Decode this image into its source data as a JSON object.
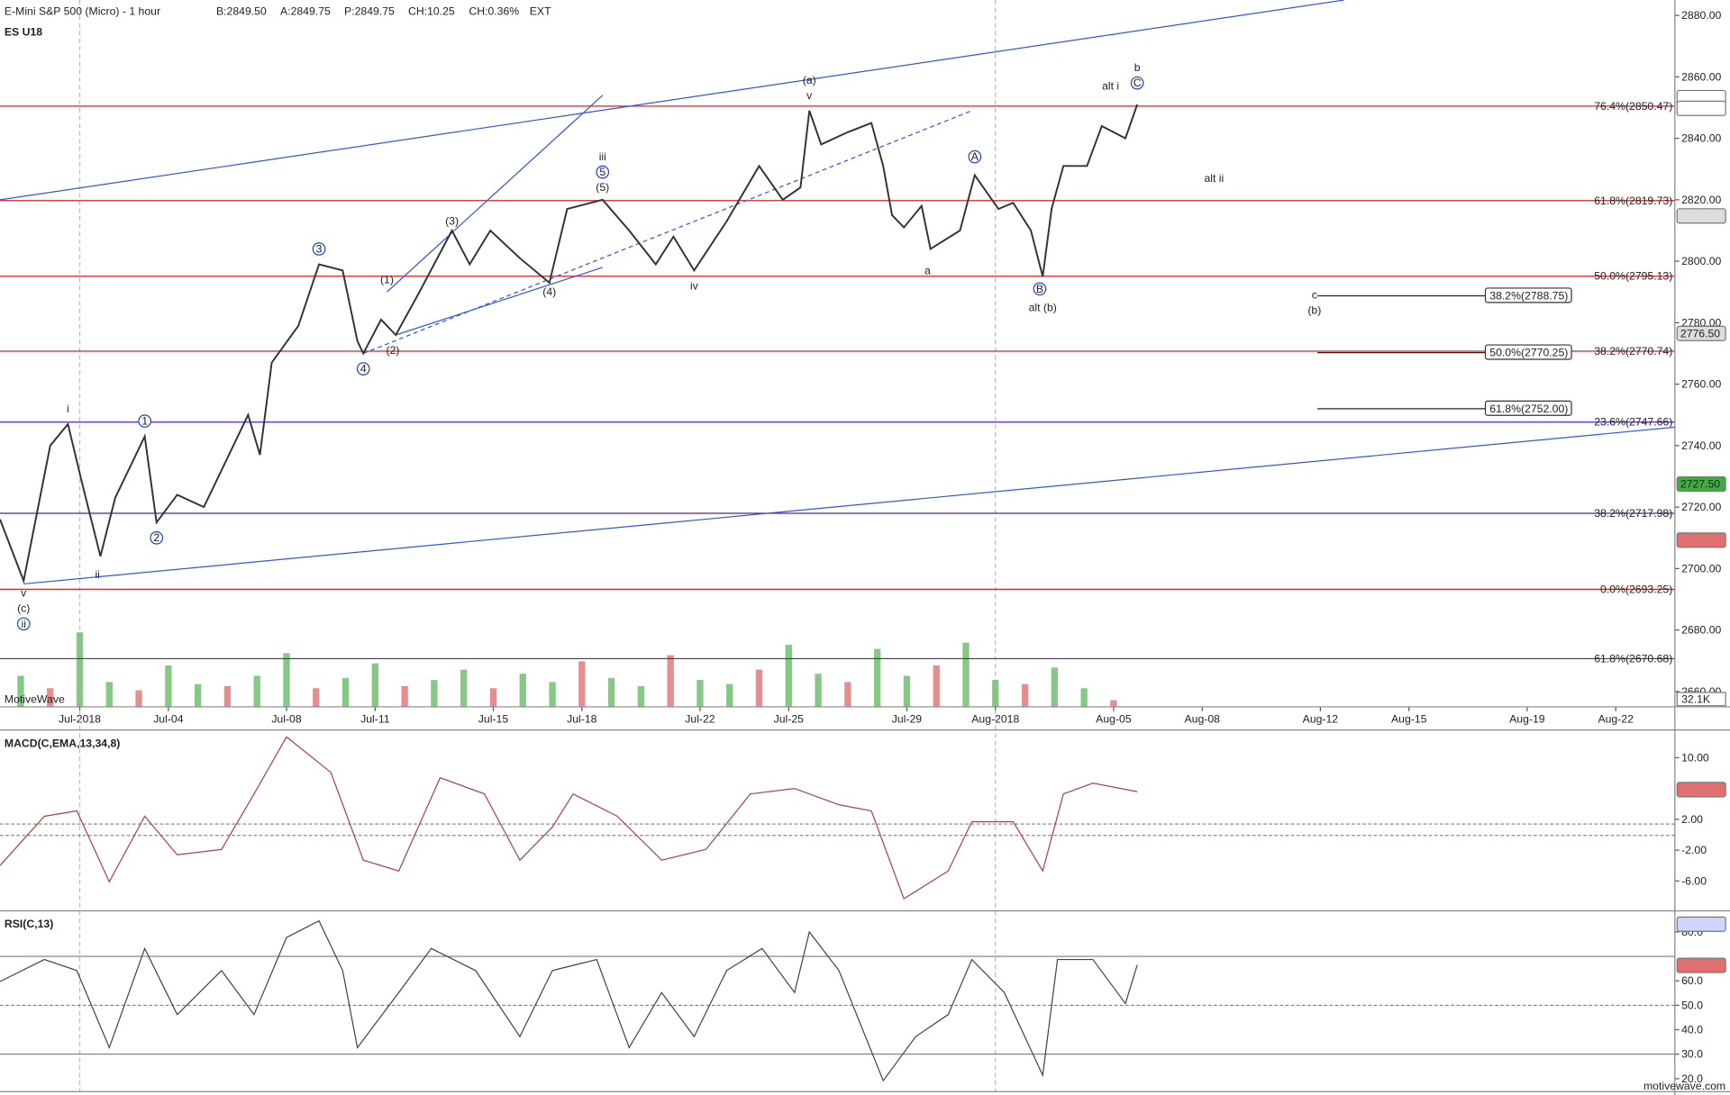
{
  "header": {
    "title": "E-Mini S&P 500 (Micro) - 1 hour",
    "bid": "B:2849.50",
    "ask": "A:2849.75",
    "price": "P:2849.75",
    "change": "CH:10.25",
    "change_pct": "CH:0.36%",
    "ext": "EXT",
    "symbol": "ES U18",
    "watermark": "MotiveWave",
    "site": "motivewave.com"
  },
  "chart_data": [
    {
      "type": "line",
      "color": "#333333",
      "xlim": [
        -1.7,
        55
      ],
      "xticks": [
        {
          "value": 1,
          "label": "Jul-2018"
        },
        {
          "value": 4,
          "label": "Jul-04"
        },
        {
          "value": 8,
          "label": "Jul-08"
        },
        {
          "value": 11,
          "label": "Jul-11"
        },
        {
          "value": 15,
          "label": "Jul-15"
        },
        {
          "value": 18,
          "label": "Jul-18"
        },
        {
          "value": 22,
          "label": "Jul-22"
        },
        {
          "value": 25,
          "label": "Jul-25"
        },
        {
          "value": 29,
          "label": "Jul-29"
        },
        {
          "value": 32,
          "label": "Aug-2018"
        },
        {
          "value": 36,
          "label": "Aug-05"
        },
        {
          "value": 39,
          "label": "Aug-08"
        },
        {
          "value": 43,
          "label": "Aug-12"
        },
        {
          "value": 46,
          "label": "Aug-15"
        },
        {
          "value": 50,
          "label": "Aug-19"
        },
        {
          "value": 53,
          "label": "Aug-22"
        }
      ],
      "month_lines": [
        0,
        9
      ],
      "ylim": [
        2655,
        2885
      ],
      "yticks": [
        {
          "value": 2660,
          "label": "2660.00"
        },
        {
          "value": 2680,
          "label": "2680.00"
        },
        {
          "value": 2700,
          "label": "2700.00"
        },
        {
          "value": 2720,
          "label": "2720.00"
        },
        {
          "value": 2740,
          "label": "2740.00"
        },
        {
          "value": 2760,
          "label": "2760.00"
        },
        {
          "value": 2780,
          "label": "2780.00"
        },
        {
          "value": 2800,
          "label": "2800.00"
        },
        {
          "value": 2820,
          "label": "2820.00"
        },
        {
          "value": 2840,
          "label": "2840.00"
        },
        {
          "value": 2860,
          "label": "2860.00"
        },
        {
          "value": 2880,
          "label": "2880.00"
        }
      ],
      "x": [
        -1.7,
        -0.9,
        0.0,
        0.6,
        1.1,
        1.7,
        2.2,
        3.2,
        3.6,
        4.3,
        5.2,
        6.0,
        6.7,
        7.1,
        7.5,
        8.4,
        9.1,
        9.9,
        10.4,
        10.6,
        11.2,
        11.7,
        12.5,
        13.6,
        14.2,
        14.9,
        15.9,
        16.9,
        17.5,
        18.7,
        19.6,
        20.5,
        21.1,
        21.8,
        22.9,
        24.0,
        24.8,
        25.4,
        25.7,
        26.1,
        27.0,
        27.8,
        28.2,
        28.5,
        28.9,
        29.5,
        29.8,
        30.8,
        31.3,
        32.1,
        32.6,
        33.2,
        33.6,
        33.9,
        34.3,
        35.1,
        35.6,
        36.4,
        36.8
      ],
      "values": [
        2716,
        2696,
        2740,
        2747,
        2727,
        2704,
        2723,
        2743,
        2715,
        2724,
        2720,
        2736,
        2750,
        2737,
        2767,
        2779,
        2799,
        2797,
        2774,
        2770,
        2781,
        2776,
        2790,
        2810,
        2799,
        2810,
        2801,
        2793,
        2817,
        2820,
        2810,
        2799,
        2808,
        2797,
        2813,
        2831,
        2820,
        2824,
        2849,
        2838,
        2842,
        2845,
        2831,
        2815,
        2811,
        2818,
        2804,
        2810,
        2828,
        2817,
        2819,
        2810,
        2795,
        2817,
        2831,
        2831,
        2844,
        2840,
        2851
      ],
      "volume": {
        "vlim": [
          0,
          400
        ],
        "up": "#66bb66",
        "down": "#e07070",
        "x": [
          -1,
          0,
          1,
          2,
          3,
          4,
          5,
          6,
          7,
          8,
          9,
          10,
          11,
          12,
          13,
          14,
          15,
          16,
          17,
          18,
          19,
          20,
          21,
          22,
          23,
          24,
          25,
          26,
          27,
          28,
          29,
          30,
          31,
          32,
          33,
          34,
          35,
          36
        ],
        "values": [
          150,
          90,
          360,
          120,
          80,
          200,
          110,
          100,
          150,
          260,
          90,
          140,
          210,
          100,
          130,
          180,
          90,
          160,
          120,
          220,
          140,
          100,
          250,
          130,
          110,
          180,
          300,
          160,
          120,
          280,
          150,
          200,
          310,
          130,
          110,
          190,
          90,
          32.1
        ],
        "label": {
          "value": 32.1,
          "label": "32.1K"
        }
      },
      "levels": [
        {
          "value": 2850.47,
          "label": "76.4%(2850.47)",
          "color": "#dd2222",
          "x0": -1.7
        },
        {
          "value": 2819.73,
          "label": "61.8%(2819.73)",
          "color": "#dd2222",
          "x0": -1.7
        },
        {
          "value": 2795.13,
          "label": "50.0%(2795.13)",
          "color": "#dd2222",
          "x0": -1.7
        },
        {
          "value": 2770.74,
          "label": "38.2%(2770.74)",
          "color": "#dd2222",
          "x0": -1.7
        },
        {
          "value": 2693.25,
          "label": "0.0%(2693.25)",
          "color": "#dd2222",
          "x0": -1.7
        },
        {
          "value": 2747.66,
          "label": "23.6%(2747.66)",
          "color": "#5522aa",
          "x0": -1.7
        },
        {
          "value": 2717.98,
          "label": "38.2%(2717.98)",
          "color": "#5522aa",
          "x0": -1.7
        },
        {
          "value": 2670.68,
          "label": "61.8%(2670.68)",
          "color": "#5522aa",
          "x0": -1.7
        },
        {
          "value": 2788.75,
          "label": "38.2%(2788.75)",
          "color": "#222222",
          "x0": 42.9,
          "x1": 51.5,
          "boxed": true
        },
        {
          "value": 2770.25,
          "label": "50.0%(2770.25)",
          "color": "#222222",
          "x0": 42.9,
          "x1": 51.5,
          "boxed": true
        },
        {
          "value": 2752.0,
          "label": "61.8%(2752.00)",
          "color": "#222222",
          "x0": 42.9,
          "x1": 51.5,
          "boxed": true
        }
      ],
      "trendlines": [
        {
          "points": [
            -1.7,
            2820,
            43.8,
            2885
          ],
          "color": "#3355dd",
          "dashed": false
        },
        {
          "points": [
            -0.9,
            2695,
            55,
            2746
          ],
          "color": "#3355dd",
          "dashed": false
        },
        {
          "points": [
            11.4,
            2790,
            18.7,
            2854
          ],
          "color": "#3355dd",
          "dashed": false
        },
        {
          "points": [
            11.7,
            2776,
            18.7,
            2798
          ],
          "color": "#3355dd",
          "dashed": false
        },
        {
          "points": [
            10.6,
            2770,
            31.2,
            2849
          ],
          "color": "#3355dd",
          "dashed": true
        }
      ],
      "annotations": [
        {
          "text": "v",
          "x": -0.9,
          "y": 2692,
          "color": "#2244cc"
        },
        {
          "text": "(c)",
          "x": -0.9,
          "y": 2687,
          "color": "#2244cc"
        },
        {
          "text": "ii",
          "x": -0.9,
          "y": 2682,
          "color": "#2244cc",
          "circle": true
        },
        {
          "text": "i",
          "x": 0.6,
          "y": 2752,
          "color": "#2244cc"
        },
        {
          "text": "ii",
          "x": 1.6,
          "y": 2698,
          "color": "#2244cc"
        },
        {
          "text": "1",
          "x": 3.2,
          "y": 2748,
          "color": "#2244cc",
          "circle": true
        },
        {
          "text": "2",
          "x": 3.6,
          "y": 2710,
          "color": "#2244cc",
          "circle": true
        },
        {
          "text": "3",
          "x": 9.1,
          "y": 2804,
          "color": "#2244cc",
          "circle": true
        },
        {
          "text": "4",
          "x": 10.6,
          "y": 2765,
          "color": "#2244cc",
          "circle": true
        },
        {
          "text": "(1)",
          "x": 11.4,
          "y": 2794,
          "color": "#2244cc"
        },
        {
          "text": "(2)",
          "x": 11.6,
          "y": 2771,
          "color": "#2244cc"
        },
        {
          "text": "(3)",
          "x": 13.6,
          "y": 2813,
          "color": "#2244cc"
        },
        {
          "text": "(4)",
          "x": 16.9,
          "y": 2790,
          "color": "#2244cc"
        },
        {
          "text": "iii",
          "x": 18.7,
          "y": 2834,
          "color": "#2244cc"
        },
        {
          "text": "5",
          "x": 18.7,
          "y": 2829,
          "color": "#2244cc",
          "circle": true
        },
        {
          "text": "(5)",
          "x": 18.7,
          "y": 2824,
          "color": "#2244cc"
        },
        {
          "text": "iv",
          "x": 21.8,
          "y": 2792,
          "color": "#2244cc"
        },
        {
          "text": "(a)",
          "x": 25.7,
          "y": 2859,
          "color": "#2244cc"
        },
        {
          "text": "v",
          "x": 25.7,
          "y": 2854,
          "color": "#2244cc"
        },
        {
          "text": "A",
          "x": 31.3,
          "y": 2834,
          "color": "#2244cc",
          "circle": true
        },
        {
          "text": "a",
          "x": 29.7,
          "y": 2797,
          "color": "#2244cc"
        },
        {
          "text": "B",
          "x": 33.5,
          "y": 2791,
          "color": "#2244cc",
          "circle": true
        },
        {
          "text": "alt (b)",
          "x": 33.6,
          "y": 2785,
          "color": "#dd2222"
        },
        {
          "text": "alt i",
          "x": 35.9,
          "y": 2857,
          "color": "#dd2222"
        },
        {
          "text": "b",
          "x": 36.8,
          "y": 2863,
          "color": "#2244cc"
        },
        {
          "text": "C",
          "x": 36.8,
          "y": 2858,
          "color": "#2244cc",
          "circle": true
        },
        {
          "text": "alt ii",
          "x": 39.4,
          "y": 2827,
          "color": "#dd2222"
        },
        {
          "text": "c",
          "x": 42.8,
          "y": 2789,
          "color": "#2244cc"
        },
        {
          "text": "(b)",
          "x": 42.8,
          "y": 2784,
          "color": "#2244cc"
        }
      ],
      "markers": [
        {
          "value": 2853.25,
          "color": "#ffffff"
        },
        {
          "value": 2849.75,
          "color": "#ffffff"
        },
        {
          "value": 2814.75,
          "color": "#dddddd"
        },
        {
          "value": 2776.5,
          "label": "2776.50",
          "color": "#dddddd"
        },
        {
          "value": 2727.5,
          "label": "2727.50",
          "color": "#44aa44"
        },
        {
          "value": 2709.25,
          "color": "#e07070"
        }
      ]
    },
    {
      "type": "line",
      "title": "MACD(C,EMA,13,34,8)",
      "color": "#aa4444",
      "ylim": [
        -9.3,
        13.6
      ],
      "yticks": [
        {
          "value": 10,
          "label": "10.00"
        },
        {
          "value": 2,
          "label": "2.00"
        },
        {
          "value": -2,
          "label": "-2.00"
        },
        {
          "value": -6,
          "label": "-6.00"
        }
      ],
      "ref_lines": [
        1.4,
        -0.1
      ],
      "x": [
        -1.7,
        -0.2,
        0.9,
        2.0,
        3.2,
        4.3,
        5.8,
        6.9,
        8.0,
        9.5,
        10.6,
        11.8,
        13.2,
        14.7,
        15.9,
        17.0,
        17.7,
        19.2,
        20.7,
        22.2,
        23.7,
        25.2,
        26.7,
        27.8,
        28.9,
        30.4,
        31.2,
        32.6,
        33.6,
        34.3,
        35.3,
        36.8
      ],
      "values": [
        -4.0,
        2.4,
        3.1,
        -6.1,
        2.4,
        -2.6,
        -1.9,
        5.3,
        12.7,
        8.1,
        -3.3,
        -4.7,
        7.4,
        5.3,
        -3.3,
        1.0,
        5.3,
        2.4,
        -3.3,
        -1.9,
        5.3,
        6.0,
        3.9,
        3.1,
        -8.3,
        -4.7,
        1.7,
        1.7,
        -4.7,
        5.3,
        6.7,
        5.6
      ],
      "markers": [
        {
          "value": 5.86,
          "color": "#e07070"
        }
      ]
    },
    {
      "type": "line",
      "title": "RSI(C,13)",
      "color": "#444444",
      "ylim": [
        14.7,
        86.8
      ],
      "yticks": [
        {
          "value": 80,
          "label": "80.0"
        },
        {
          "value": 60,
          "label": "60.0"
        },
        {
          "value": 50,
          "label": "50.0"
        },
        {
          "value": 40,
          "label": "40.0"
        },
        {
          "value": 30,
          "label": "30.0"
        },
        {
          "value": 20,
          "label": "20.0"
        }
      ],
      "ref_lines": [
        70,
        50,
        30
      ],
      "x": [
        -1.7,
        -0.2,
        0.9,
        2.0,
        3.2,
        4.3,
        5.8,
        6.9,
        8.0,
        9.1,
        9.9,
        10.4,
        11.8,
        12.9,
        14.4,
        15.9,
        17.0,
        18.5,
        19.6,
        20.7,
        21.8,
        22.9,
        24.1,
        25.2,
        25.7,
        26.7,
        28.2,
        29.3,
        30.4,
        31.2,
        32.3,
        33.6,
        34.1,
        35.3,
        36.4,
        36.8
      ],
      "values": [
        59.7,
        68.7,
        64.2,
        32.7,
        73.2,
        46.2,
        64.2,
        46.2,
        77.7,
        84.5,
        64.2,
        32.7,
        55.2,
        73.2,
        64.2,
        37.2,
        64.2,
        68.7,
        32.7,
        55.2,
        37.2,
        64.2,
        73.2,
        55.2,
        80,
        64.2,
        19.2,
        37.2,
        46.2,
        68.7,
        55.2,
        21.4,
        68.7,
        68.7,
        50.7,
        66.5
      ],
      "markers": [
        {
          "value": 83.14,
          "color": "#ccd4ff"
        },
        {
          "value": 66.3,
          "color": "#e07070"
        }
      ]
    }
  ]
}
